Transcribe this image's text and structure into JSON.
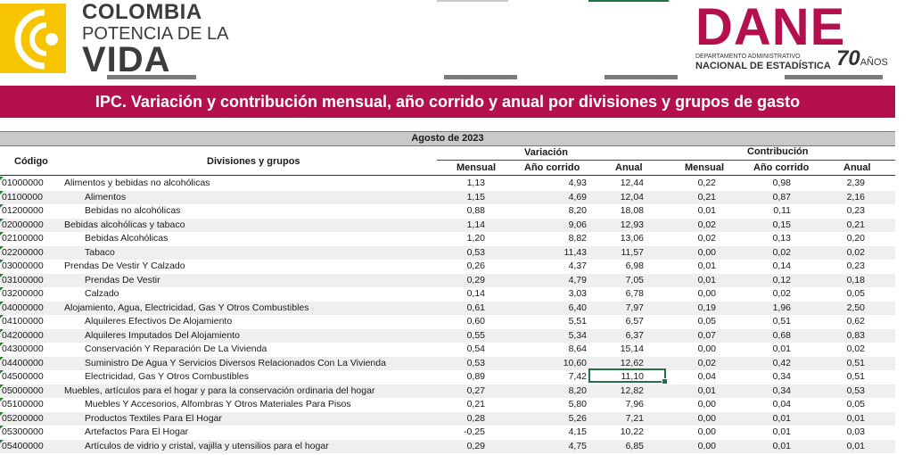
{
  "header": {
    "brand_left": {
      "line1": "COLOMBIA",
      "line2": "POTENCIA DE LA",
      "line3": "VIDA"
    },
    "brand_right": {
      "name": "DANE",
      "sub1": "DEPARTAMENTO ADMINISTRATIVO",
      "sub2": "NACIONAL DE ESTADÍSTICA",
      "anniv_number": "70",
      "anniv_word": "AÑOS"
    }
  },
  "title": "IPC. Variación y contribución mensual, año corrido y anual por divisiones y grupos de gasto",
  "table": {
    "period": "Agosto de 2023",
    "col_codigo": "Código",
    "col_divisiones": "Divisiones y grupos",
    "group_variacion": "Variación",
    "group_contribucion": "Contribución",
    "sub_mensual": "Mensual",
    "sub_ano_corrido": "Año corrido",
    "sub_anual": "Anual",
    "rows": [
      {
        "code": "01000000",
        "name": "Alimentos y bebidas no alcohólicas",
        "sub": false,
        "v": [
          "1,13",
          "4,93",
          "12,44",
          "0,22",
          "0,98",
          "2,39"
        ]
      },
      {
        "code": "01100000",
        "name": "Alimentos",
        "sub": true,
        "v": [
          "1,15",
          "4,69",
          "12,04",
          "0,21",
          "0,87",
          "2,16"
        ]
      },
      {
        "code": "01200000",
        "name": "Bebidas no alcohólicas",
        "sub": true,
        "v": [
          "0,88",
          "8,20",
          "18,08",
          "0,01",
          "0,11",
          "0,23"
        ]
      },
      {
        "code": "02000000",
        "name": "Bebidas alcohólicas y tabaco",
        "sub": false,
        "v": [
          "1,14",
          "9,06",
          "12,93",
          "0,02",
          "0,15",
          "0,21"
        ]
      },
      {
        "code": "02100000",
        "name": "Bebidas Alcohólicas",
        "sub": true,
        "v": [
          "1,20",
          "8,82",
          "13,06",
          "0,02",
          "0,13",
          "0,20"
        ]
      },
      {
        "code": "02200000",
        "name": "Tabaco",
        "sub": true,
        "v": [
          "0,53",
          "11,43",
          "11,57",
          "0,00",
          "0,02",
          "0,02"
        ]
      },
      {
        "code": "03000000",
        "name": "Prendas De Vestir Y Calzado",
        "sub": false,
        "v": [
          "0,26",
          "4,37",
          "6,98",
          "0,01",
          "0,14",
          "0,23"
        ]
      },
      {
        "code": "03100000",
        "name": "Prendas De Vestir",
        "sub": true,
        "v": [
          "0,29",
          "4,79",
          "7,05",
          "0,01",
          "0,12",
          "0,18"
        ]
      },
      {
        "code": "03200000",
        "name": "Calzado",
        "sub": true,
        "v": [
          "0,14",
          "3,03",
          "6,78",
          "0,00",
          "0,02",
          "0,05"
        ]
      },
      {
        "code": "04000000",
        "name": "Alojamiento, Agua, Electricidad, Gas Y Otros Combustibles",
        "sub": false,
        "v": [
          "0,61",
          "6,40",
          "7,97",
          "0,19",
          "1,96",
          "2,50"
        ]
      },
      {
        "code": "04100000",
        "name": "Alquileres Efectivos De Alojamiento",
        "sub": true,
        "v": [
          "0,60",
          "5,51",
          "6,57",
          "0,05",
          "0,51",
          "0,62"
        ]
      },
      {
        "code": "04200000",
        "name": "Alquileres Imputados Del Alojamiento",
        "sub": true,
        "v": [
          "0,55",
          "5,34",
          "6,37",
          "0,07",
          "0,68",
          "0,83"
        ]
      },
      {
        "code": "04300000",
        "name": "Conservación Y Reparación De La Vivienda",
        "sub": true,
        "v": [
          "0,54",
          "8,64",
          "15,14",
          "0,00",
          "0,01",
          "0,02"
        ]
      },
      {
        "code": "04400000",
        "name": "Suministro De Agua Y Servicios Diversos Relacionados Con  La Vivienda",
        "sub": true,
        "v": [
          "0,53",
          "10,60",
          "12,62",
          "0,02",
          "0,42",
          "0,51"
        ]
      },
      {
        "code": "04500000",
        "name": "Electricidad, Gas Y Otros Combustibles",
        "sub": true,
        "v": [
          "0,89",
          "7,42",
          "11,10",
          "0,04",
          "0,34",
          "0,51"
        ]
      },
      {
        "code": "05000000",
        "name": "Muebles, artículos para el hogar y para la conservación ordinaria del hogar",
        "sub": false,
        "v": [
          "0,27",
          "8,20",
          "12,82",
          "0,01",
          "0,34",
          "0,53"
        ]
      },
      {
        "code": "05100000",
        "name": "Muebles Y Accesorios, Alfombras Y Otros Materiales Para Pisos",
        "sub": true,
        "v": [
          "0,21",
          "5,80",
          "7,96",
          "0,00",
          "0,04",
          "0,05"
        ]
      },
      {
        "code": "05200000",
        "name": "Productos Textiles Para El Hogar",
        "sub": true,
        "v": [
          "0,28",
          "5,26",
          "7,21",
          "0,00",
          "0,01",
          "0,01"
        ]
      },
      {
        "code": "05300000",
        "name": "Artefactos Para El Hogar",
        "sub": true,
        "v": [
          "-0,25",
          "4,15",
          "10,22",
          "0,00",
          "0,01",
          "0,03"
        ]
      },
      {
        "code": "05400000",
        "name": "Artículos de vidrio y cristal, vajilla y utensilios para el hogar",
        "sub": true,
        "v": [
          "0,29",
          "4,75",
          "6,85",
          "0,00",
          "0,01",
          "0,01"
        ]
      }
    ]
  },
  "colors": {
    "brand": "#b5104e",
    "header_gray": "#c9c9c9",
    "excel_green": "#217346"
  }
}
